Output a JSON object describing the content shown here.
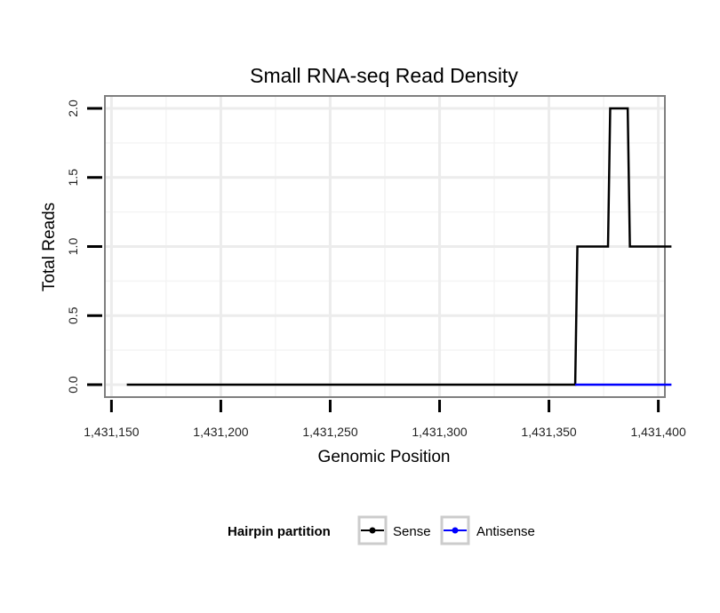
{
  "chart_data": {
    "type": "line",
    "title": "Small RNA-seq Read Density",
    "xlabel": "Genomic Position",
    "ylabel": "Total Reads",
    "xlim": [
      1431147,
      1431403
    ],
    "ylim": [
      -0.09,
      2.09
    ],
    "x_ticks": [
      1431150,
      1431200,
      1431250,
      1431300,
      1431350,
      1431400
    ],
    "x_tick_labels": [
      "1,431,150",
      "1,431,200",
      "1,431,250",
      "1,431,300",
      "1,431,350",
      "1,431,400"
    ],
    "y_ticks": [
      0,
      0.5,
      1,
      1.5,
      2
    ],
    "y_tick_labels": [
      "0.0",
      "0.5",
      "1.0",
      "1.5",
      "2.0"
    ],
    "grid": true,
    "series": [
      {
        "name": "Sense",
        "color": "#000000",
        "points": [
          [
            1431157,
            0
          ],
          [
            1431362,
            0
          ],
          [
            1431363,
            1
          ],
          [
            1431377,
            1
          ],
          [
            1431378,
            2
          ],
          [
            1431386,
            2
          ],
          [
            1431387,
            1
          ],
          [
            1431392,
            1
          ],
          [
            1431406,
            1
          ]
        ]
      },
      {
        "name": "Antisense",
        "color": "#0000ff",
        "points": [
          [
            1431362,
            0
          ],
          [
            1431406,
            0
          ]
        ]
      }
    ],
    "legend": {
      "title": "Hairpin partition",
      "position": "bottom",
      "entries": [
        "Sense",
        "Antisense"
      ]
    }
  }
}
